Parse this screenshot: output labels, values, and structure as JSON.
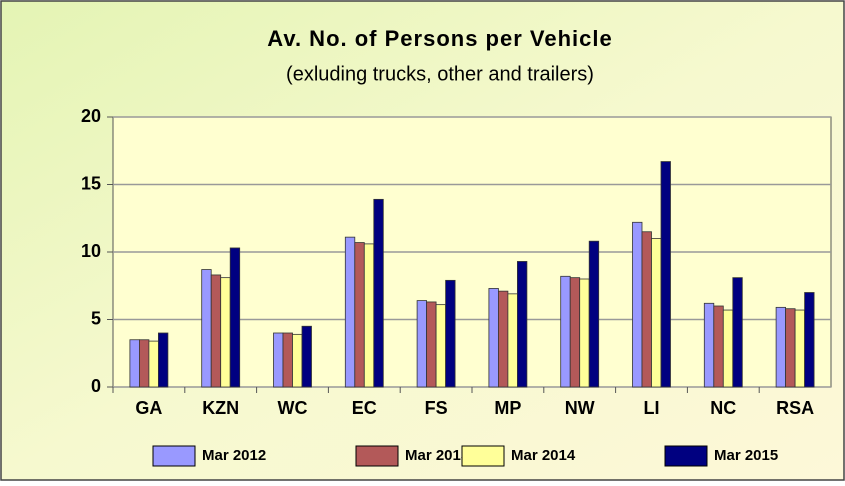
{
  "chart_data": {
    "type": "bar",
    "title": "Av. No. of Persons per Vehicle",
    "subtitle": "(exluding trucks, other and trailers)",
    "categories": [
      "GA",
      "KZN",
      "WC",
      "EC",
      "FS",
      "MP",
      "NW",
      "LI",
      "NC",
      "RSA"
    ],
    "series": [
      {
        "name": "Mar 2012",
        "color": "#9999ff",
        "values": [
          3.5,
          8.7,
          4.0,
          11.1,
          6.4,
          7.3,
          8.2,
          12.2,
          6.2,
          5.9
        ]
      },
      {
        "name": "Mar 2013",
        "color": "#b35959",
        "values": [
          3.5,
          8.3,
          4.0,
          10.7,
          6.3,
          7.1,
          8.1,
          11.5,
          6.0,
          5.8
        ]
      },
      {
        "name": "Mar 2014",
        "color": "#ffff99",
        "values": [
          3.4,
          8.1,
          3.9,
          10.6,
          6.1,
          6.9,
          8.0,
          11.0,
          5.7,
          5.7
        ]
      },
      {
        "name": "Mar 2015",
        "color": "#000080",
        "values": [
          4.0,
          10.3,
          4.5,
          13.9,
          7.9,
          9.3,
          10.8,
          16.7,
          8.1,
          7.0
        ]
      }
    ],
    "ylim": [
      0,
      20
    ],
    "yticks": [
      0,
      5,
      10,
      15,
      20
    ],
    "grid": true,
    "legend": "bottom"
  }
}
